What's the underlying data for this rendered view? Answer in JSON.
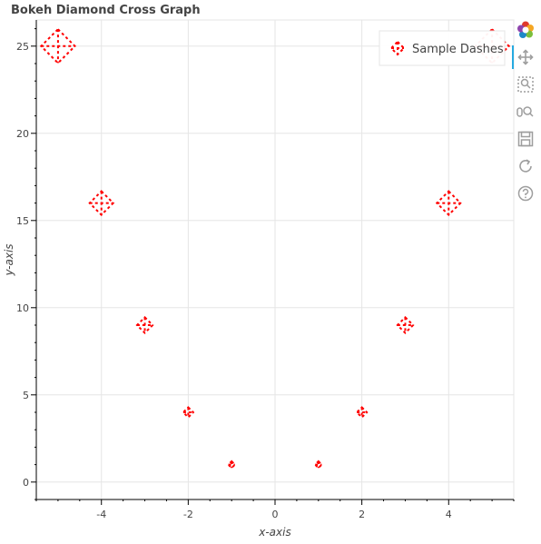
{
  "chart_data": {
    "type": "scatter",
    "title": "Bokeh Diamond Cross Graph",
    "xlabel": "x-axis",
    "ylabel": "y-axis",
    "xlim": [
      -5.5,
      5.5
    ],
    "ylim": [
      -1,
      26.5
    ],
    "xticks": [
      -4,
      -2,
      0,
      2,
      4
    ],
    "yticks": [
      0,
      5,
      10,
      15,
      20,
      25
    ],
    "grid": true,
    "legend_position": "top-right",
    "marker": "diamond_cross",
    "marker_color": "#ff0000",
    "series": [
      {
        "name": "Sample Dashes",
        "points": [
          {
            "x": -5,
            "y": 25
          },
          {
            "x": -4,
            "y": 16
          },
          {
            "x": -3,
            "y": 9
          },
          {
            "x": -2,
            "y": 4
          },
          {
            "x": -1,
            "y": 1
          },
          {
            "x": 1,
            "y": 1
          },
          {
            "x": 2,
            "y": 4
          },
          {
            "x": 3,
            "y": 9
          },
          {
            "x": 4,
            "y": 16
          },
          {
            "x": 5,
            "y": 25
          }
        ]
      }
    ]
  },
  "toolbar": {
    "tools": [
      "bokeh-logo-icon",
      "pan-icon",
      "box-zoom-icon",
      "wheel-zoom-icon",
      "save-icon",
      "reset-icon",
      "help-icon"
    ],
    "active_color": "#26aae1",
    "icon_color": "#9e9e9e"
  }
}
